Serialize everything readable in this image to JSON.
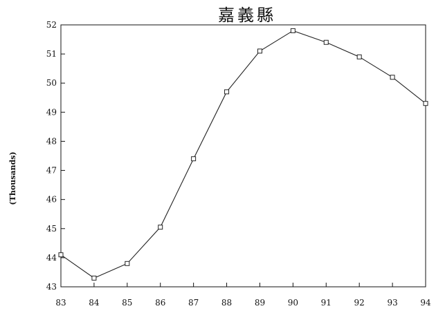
{
  "chart_data": {
    "type": "line",
    "title": "嘉義縣",
    "xlabel": "",
    "ylabel": "(Thousands)",
    "x": [
      "83",
      "84",
      "85",
      "86",
      "87",
      "88",
      "89",
      "90",
      "91",
      "92",
      "93",
      "94"
    ],
    "series": [
      {
        "values": [
          44.1,
          43.3,
          43.8,
          45.05,
          47.4,
          49.7,
          51.1,
          51.8,
          51.4,
          50.9,
          50.2,
          49.3
        ]
      }
    ],
    "ylim": [
      43,
      52
    ],
    "yticks": [
      "43",
      "44",
      "45",
      "46",
      "47",
      "48",
      "49",
      "50",
      "51",
      "52"
    ],
    "grid": false,
    "marker": "open-square",
    "colors": {
      "line": "#222222",
      "axis": "#111111"
    }
  }
}
